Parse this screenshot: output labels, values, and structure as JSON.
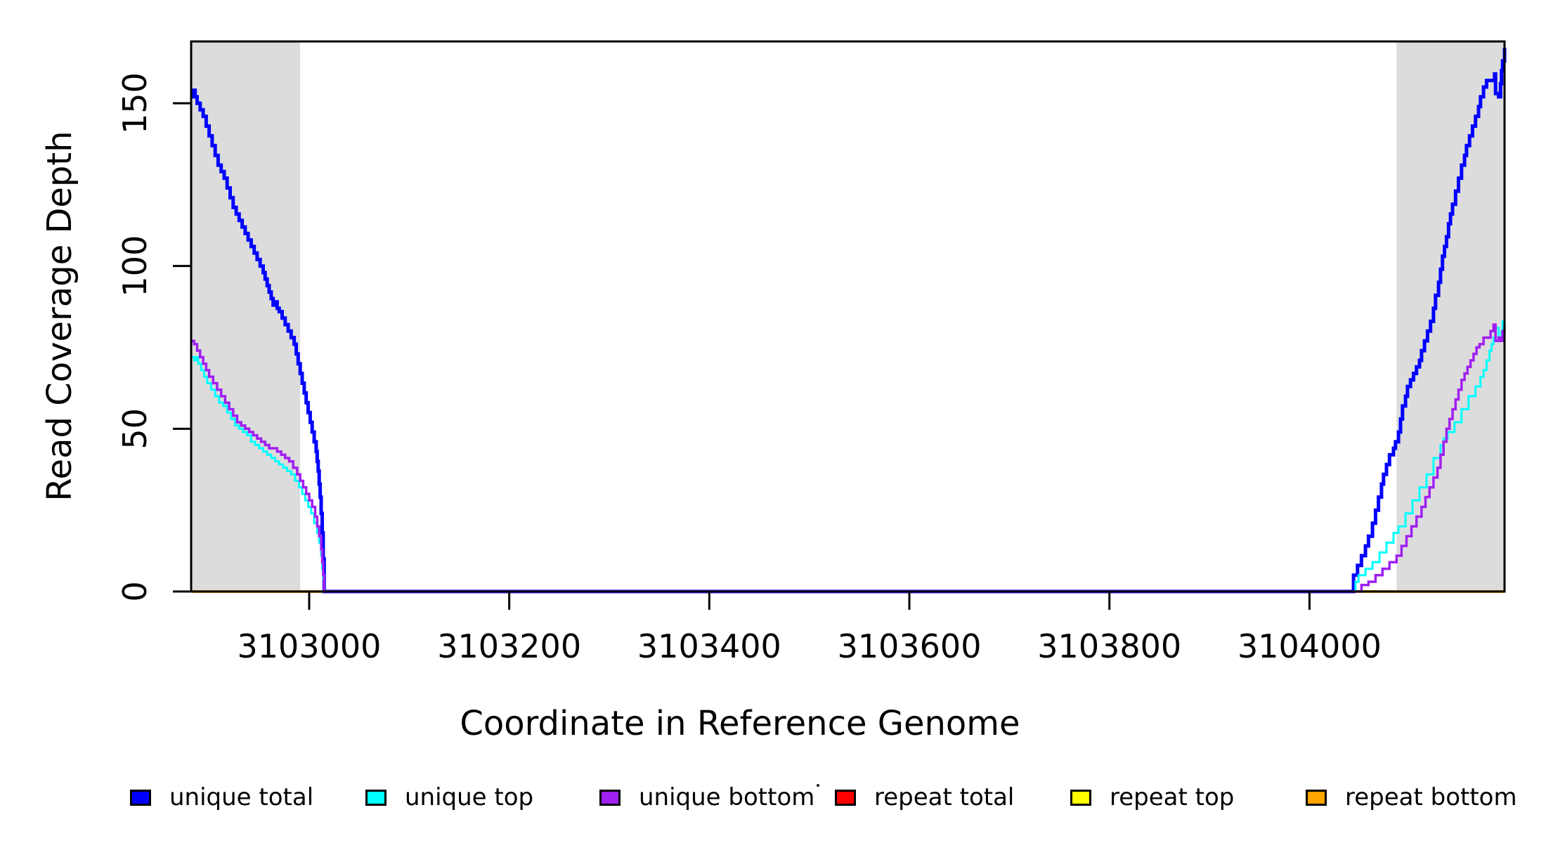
{
  "figure": {
    "background": "#ffffff",
    "frame_color": "#000000",
    "shading_color": "#dcdcdc"
  },
  "chart_data": {
    "type": "line",
    "subtype": "step-after",
    "title": "",
    "xlabel": "Coordinate in Reference Genome",
    "ylabel": "Read Coverage Depth",
    "xlim": [
      3102882,
      3104195
    ],
    "ylim": [
      0,
      169
    ],
    "x_ticks": [
      3103000,
      3103200,
      3103400,
      3103600,
      3103800,
      3104000
    ],
    "y_ticks": [
      0,
      50,
      100,
      150
    ],
    "grid": false,
    "legend_position": "bottom-horizontal",
    "shaded_regions": [
      {
        "name": "repeat-region-left",
        "from": 3102882,
        "to": 3102991
      },
      {
        "name": "repeat-region-right",
        "from": 3104087,
        "to": 3104194
      }
    ],
    "series": [
      {
        "name": "repeat total",
        "color": "#FF0000",
        "width": 4,
        "points": [
          [
            3102882,
            0
          ],
          [
            3104195,
            0
          ]
        ]
      },
      {
        "name": "repeat top",
        "color": "#FFFF00",
        "width": 4,
        "points": [
          [
            3102882,
            0
          ],
          [
            3104195,
            0
          ]
        ]
      },
      {
        "name": "repeat bottom",
        "color": "#FFA500",
        "width": 4,
        "points": [
          [
            3102882,
            0
          ],
          [
            3104195,
            0
          ]
        ]
      },
      {
        "name": "unique total",
        "color": "#0000FF",
        "width": 5,
        "points": [
          [
            3102882,
            152
          ],
          [
            3102884,
            154
          ],
          [
            3102886,
            152
          ],
          [
            3102888,
            150
          ],
          [
            3102891,
            148
          ],
          [
            3102894,
            146
          ],
          [
            3102897,
            143
          ],
          [
            3102900,
            140
          ],
          [
            3102903,
            137
          ],
          [
            3102906,
            134
          ],
          [
            3102909,
            131
          ],
          [
            3102912,
            129
          ],
          [
            3102915,
            127
          ],
          [
            3102918,
            124
          ],
          [
            3102921,
            121
          ],
          [
            3102924,
            118
          ],
          [
            3102927,
            116
          ],
          [
            3102930,
            114
          ],
          [
            3102933,
            112
          ],
          [
            3102936,
            110
          ],
          [
            3102939,
            108
          ],
          [
            3102942,
            106
          ],
          [
            3102945,
            104
          ],
          [
            3102948,
            102
          ],
          [
            3102951,
            100
          ],
          [
            3102954,
            98
          ],
          [
            3102956,
            96
          ],
          [
            3102958,
            94
          ],
          [
            3102960,
            92
          ],
          [
            3102962,
            90
          ],
          [
            3102964,
            88
          ],
          [
            3102966,
            89
          ],
          [
            3102968,
            87
          ],
          [
            3102970,
            86
          ],
          [
            3102973,
            84
          ],
          [
            3102976,
            82
          ],
          [
            3102979,
            80
          ],
          [
            3102982,
            78
          ],
          [
            3102985,
            76
          ],
          [
            3102987,
            73
          ],
          [
            3102989,
            70
          ],
          [
            3102991,
            67
          ],
          [
            3102993,
            64
          ],
          [
            3102995,
            61
          ],
          [
            3102997,
            58
          ],
          [
            3102999,
            55
          ],
          [
            3103001,
            52
          ],
          [
            3103003,
            49
          ],
          [
            3103005,
            46
          ],
          [
            3103007,
            43
          ],
          [
            3103008,
            40
          ],
          [
            3103009,
            37
          ],
          [
            3103010,
            33
          ],
          [
            3103011,
            29
          ],
          [
            3103012,
            24
          ],
          [
            3103013,
            18
          ],
          [
            3103014,
            10
          ],
          [
            3103015,
            0
          ],
          [
            3104044,
            5
          ],
          [
            3104048,
            8
          ],
          [
            3104052,
            11
          ],
          [
            3104056,
            14
          ],
          [
            3104059,
            17
          ],
          [
            3104063,
            21
          ],
          [
            3104066,
            25
          ],
          [
            3104069,
            29
          ],
          [
            3104072,
            33
          ],
          [
            3104074,
            36
          ],
          [
            3104077,
            39
          ],
          [
            3104080,
            42
          ],
          [
            3104084,
            44
          ],
          [
            3104086,
            46
          ],
          [
            3104089,
            49
          ],
          [
            3104091,
            53
          ],
          [
            3104093,
            57
          ],
          [
            3104096,
            60
          ],
          [
            3104098,
            63
          ],
          [
            3104101,
            65
          ],
          [
            3104104,
            67
          ],
          [
            3104107,
            69
          ],
          [
            3104110,
            71
          ],
          [
            3104112,
            74
          ],
          [
            3104115,
            77
          ],
          [
            3104118,
            80
          ],
          [
            3104121,
            83
          ],
          [
            3104124,
            87
          ],
          [
            3104126,
            91
          ],
          [
            3104129,
            95
          ],
          [
            3104131,
            99
          ],
          [
            3104133,
            103
          ],
          [
            3104135,
            106
          ],
          [
            3104137,
            109
          ],
          [
            3104139,
            113
          ],
          [
            3104141,
            116
          ],
          [
            3104143,
            119
          ],
          [
            3104146,
            123
          ],
          [
            3104149,
            127
          ],
          [
            3104152,
            131
          ],
          [
            3104155,
            134
          ],
          [
            3104157,
            137
          ],
          [
            3104160,
            140
          ],
          [
            3104163,
            143
          ],
          [
            3104166,
            146
          ],
          [
            3104169,
            149
          ],
          [
            3104171,
            152
          ],
          [
            3104174,
            155
          ],
          [
            3104177,
            157
          ],
          [
            3104183,
            157
          ],
          [
            3104185,
            159
          ],
          [
            3104186,
            153
          ],
          [
            3104189,
            152
          ],
          [
            3104191,
            156
          ],
          [
            3104192,
            160
          ],
          [
            3104193,
            163
          ],
          [
            3104195,
            167
          ]
        ]
      },
      {
        "name": "unique top",
        "color": "#00FFFF",
        "width": 3,
        "points": [
          [
            3102882,
            72
          ],
          [
            3102885,
            71
          ],
          [
            3102887,
            72
          ],
          [
            3102889,
            70
          ],
          [
            3102892,
            68
          ],
          [
            3102895,
            66
          ],
          [
            3102898,
            64
          ],
          [
            3102902,
            62
          ],
          [
            3102906,
            60
          ],
          [
            3102910,
            58
          ],
          [
            3102914,
            57
          ],
          [
            3102918,
            55
          ],
          [
            3102922,
            53
          ],
          [
            3102926,
            51
          ],
          [
            3102930,
            50
          ],
          [
            3102934,
            49
          ],
          [
            3102938,
            48
          ],
          [
            3102942,
            46
          ],
          [
            3102946,
            45
          ],
          [
            3102950,
            44
          ],
          [
            3102954,
            43
          ],
          [
            3102958,
            42
          ],
          [
            3102962,
            41
          ],
          [
            3102966,
            40
          ],
          [
            3102970,
            39
          ],
          [
            3102974,
            38
          ],
          [
            3102978,
            37
          ],
          [
            3102982,
            36
          ],
          [
            3102986,
            34
          ],
          [
            3102990,
            32
          ],
          [
            3102993,
            30
          ],
          [
            3102996,
            28
          ],
          [
            3102999,
            26
          ],
          [
            3103002,
            24
          ],
          [
            3103005,
            21
          ],
          [
            3103008,
            18
          ],
          [
            3103010,
            15
          ],
          [
            3103012,
            11
          ],
          [
            3103013,
            7
          ],
          [
            3103014,
            4
          ],
          [
            3103015,
            0
          ],
          [
            3104046,
            3
          ],
          [
            3104049,
            5
          ],
          [
            3104056,
            7
          ],
          [
            3104063,
            9
          ],
          [
            3104070,
            12
          ],
          [
            3104077,
            15
          ],
          [
            3104084,
            18
          ],
          [
            3104089,
            20
          ],
          [
            3104096,
            24
          ],
          [
            3104103,
            28
          ],
          [
            3104110,
            32
          ],
          [
            3104117,
            36
          ],
          [
            3104124,
            41
          ],
          [
            3104131,
            45
          ],
          [
            3104134,
            47
          ],
          [
            3104138,
            49
          ],
          [
            3104145,
            52
          ],
          [
            3104152,
            56
          ],
          [
            3104159,
            60
          ],
          [
            3104166,
            63
          ],
          [
            3104171,
            66
          ],
          [
            3104174,
            68
          ],
          [
            3104177,
            71
          ],
          [
            3104180,
            74
          ],
          [
            3104182,
            76
          ],
          [
            3104184,
            78
          ],
          [
            3104186,
            81
          ],
          [
            3104189,
            78
          ],
          [
            3104190,
            77
          ],
          [
            3104192,
            80
          ],
          [
            3104193,
            83
          ],
          [
            3104195,
            85
          ]
        ]
      },
      {
        "name": "unique bottom",
        "color": "#A020F0",
        "width": 3.5,
        "points": [
          [
            3102882,
            77
          ],
          [
            3102885,
            76
          ],
          [
            3102888,
            74
          ],
          [
            3102891,
            72
          ],
          [
            3102894,
            70
          ],
          [
            3102897,
            68
          ],
          [
            3102900,
            66
          ],
          [
            3102904,
            64
          ],
          [
            3102908,
            62
          ],
          [
            3102912,
            60
          ],
          [
            3102916,
            58
          ],
          [
            3102920,
            56
          ],
          [
            3102924,
            54
          ],
          [
            3102928,
            52
          ],
          [
            3102932,
            51
          ],
          [
            3102936,
            50
          ],
          [
            3102940,
            49
          ],
          [
            3102944,
            48
          ],
          [
            3102948,
            47
          ],
          [
            3102952,
            46
          ],
          [
            3102956,
            45
          ],
          [
            3102960,
            44
          ],
          [
            3102964,
            44
          ],
          [
            3102968,
            43
          ],
          [
            3102972,
            42
          ],
          [
            3102976,
            41
          ],
          [
            3102980,
            40
          ],
          [
            3102984,
            38
          ],
          [
            3102988,
            36
          ],
          [
            3102991,
            34
          ],
          [
            3102994,
            32
          ],
          [
            3102997,
            30
          ],
          [
            3103000,
            28
          ],
          [
            3103003,
            26
          ],
          [
            3103006,
            23
          ],
          [
            3103008,
            20
          ],
          [
            3103010,
            17
          ],
          [
            3103012,
            13
          ],
          [
            3103013,
            9
          ],
          [
            3103014,
            5
          ],
          [
            3103015,
            0
          ],
          [
            3104052,
            2
          ],
          [
            3104059,
            3
          ],
          [
            3104066,
            5
          ],
          [
            3104073,
            7
          ],
          [
            3104080,
            9
          ],
          [
            3104087,
            11
          ],
          [
            3104092,
            14
          ],
          [
            3104097,
            17
          ],
          [
            3104102,
            20
          ],
          [
            3104107,
            23
          ],
          [
            3104112,
            26
          ],
          [
            3104116,
            29
          ],
          [
            3104120,
            32
          ],
          [
            3104124,
            35
          ],
          [
            3104128,
            38
          ],
          [
            3104131,
            42
          ],
          [
            3104134,
            46
          ],
          [
            3104137,
            50
          ],
          [
            3104140,
            53
          ],
          [
            3104143,
            56
          ],
          [
            3104146,
            59
          ],
          [
            3104149,
            62
          ],
          [
            3104152,
            65
          ],
          [
            3104155,
            67
          ],
          [
            3104158,
            69
          ],
          [
            3104161,
            71
          ],
          [
            3104164,
            73
          ],
          [
            3104167,
            75
          ],
          [
            3104170,
            76
          ],
          [
            3104174,
            78
          ],
          [
            3104178,
            78
          ],
          [
            3104181,
            80
          ],
          [
            3104184,
            82
          ],
          [
            3104186,
            77
          ],
          [
            3104189,
            78
          ],
          [
            3104191,
            77
          ],
          [
            3104193,
            80
          ],
          [
            3104195,
            82
          ]
        ]
      }
    ],
    "legend": [
      {
        "label": "unique total",
        "color": "#0000FF"
      },
      {
        "label": "unique top",
        "color": "#00FFFF"
      },
      {
        "label": "unique bottom",
        "color": "#A020F0"
      },
      {
        "label": "repeat total",
        "color": "#FF0000"
      },
      {
        "label": "repeat top",
        "color": "#FFFF00"
      },
      {
        "label": "repeat bottom",
        "color": "#FFA500"
      }
    ]
  }
}
